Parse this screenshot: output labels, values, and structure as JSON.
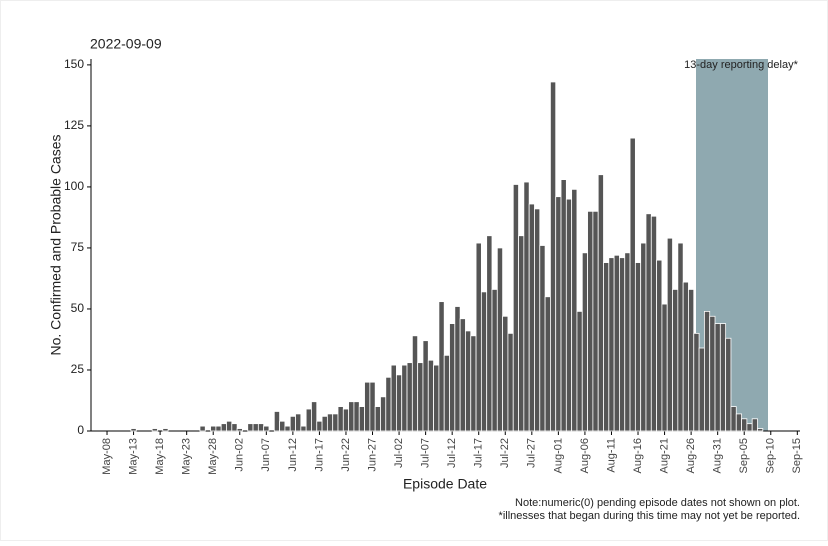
{
  "chart_data": {
    "type": "bar",
    "title": "2022-09-09",
    "xlabel": "Episode Date",
    "ylabel": "No. Confirmed and Probable Cases",
    "annotation": "13-day reporting delay*",
    "notes": [
      "Note:numeric(0) pending episode dates not shown on plot.",
      "*illnesses that began during this time may not yet be reported."
    ],
    "categories": [
      null,
      null,
      "May-08",
      null,
      null,
      null,
      null,
      "May-13",
      null,
      null,
      null,
      null,
      "May-18",
      null,
      null,
      null,
      null,
      "May-23",
      null,
      null,
      null,
      null,
      "May-28",
      null,
      null,
      null,
      null,
      "Jun-02",
      null,
      null,
      null,
      null,
      "Jun-07",
      null,
      null,
      null,
      null,
      "Jun-12",
      null,
      null,
      null,
      null,
      "Jun-17",
      null,
      null,
      null,
      null,
      "Jun-22",
      null,
      null,
      null,
      null,
      "Jun-27",
      null,
      null,
      null,
      null,
      "Jul-02",
      null,
      null,
      null,
      null,
      "Jul-07",
      null,
      null,
      null,
      null,
      "Jul-12",
      null,
      null,
      null,
      null,
      "Jul-17",
      null,
      null,
      null,
      null,
      "Jul-22",
      null,
      null,
      null,
      null,
      "Jul-27",
      null,
      null,
      null,
      null,
      "Aug-01",
      null,
      null,
      null,
      null,
      "Aug-06",
      null,
      null,
      null,
      null,
      "Aug-11",
      null,
      null,
      null,
      null,
      "Aug-16",
      null,
      null,
      null,
      null,
      "Aug-21",
      null,
      null,
      null,
      null,
      "Aug-26",
      null,
      null,
      null,
      null,
      "Aug-31",
      null,
      null,
      null,
      null,
      "Sep-05",
      null,
      null,
      null,
      null,
      "Sep-10",
      null,
      null,
      null,
      null,
      "Sep-15"
    ],
    "values": [
      0,
      0,
      0,
      0,
      0,
      0,
      0,
      1,
      0,
      0,
      0,
      1,
      0,
      1,
      0,
      0,
      0,
      0,
      0,
      0,
      2,
      0,
      2,
      2,
      3,
      4,
      3,
      1,
      0,
      3,
      3,
      3,
      2,
      0,
      8,
      4,
      2,
      6,
      7,
      2,
      9,
      12,
      4,
      6,
      7,
      7,
      10,
      9,
      12,
      12,
      10,
      20,
      20,
      10,
      14,
      22,
      27,
      23,
      27,
      28,
      39,
      28,
      37,
      29,
      27,
      53,
      31,
      44,
      51,
      46,
      41,
      39,
      77,
      57,
      80,
      58,
      75,
      47,
      40,
      101,
      80,
      102,
      93,
      91,
      76,
      55,
      143,
      96,
      103,
      95,
      99,
      49,
      73,
      90,
      90,
      105,
      69,
      71,
      72,
      71,
      73,
      120,
      69,
      77,
      89,
      88,
      70,
      52,
      79,
      58,
      77,
      61,
      58,
      40,
      34,
      49,
      47,
      44,
      44,
      38,
      10,
      7,
      5,
      3,
      5,
      1,
      0,
      null,
      null,
      null,
      null,
      null,
      null
    ],
    "color": "#555555",
    "ylim": [
      0,
      152
    ],
    "yticks": [
      0,
      25,
      50,
      75,
      100,
      125,
      150
    ],
    "grid": false
  }
}
